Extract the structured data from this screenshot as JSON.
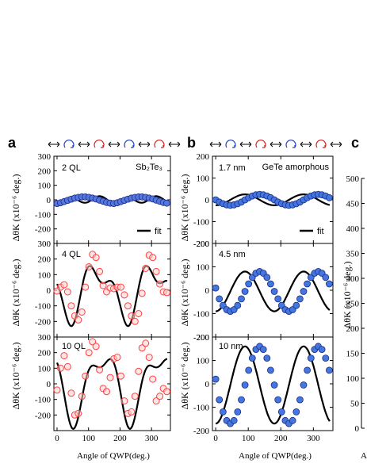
{
  "figure": {
    "panel_letters": [
      "a",
      "b",
      "c"
    ]
  },
  "chart_data": [
    {
      "type": "scatter",
      "panel": "a",
      "annotation": "2 QL",
      "material": "Sb₂Te₃",
      "legend": "fit",
      "ylabel": "ΔθK (x10⁻⁶ deg.)",
      "ylim": [
        -300,
        300
      ],
      "yticks": [
        -200,
        -100,
        0,
        100,
        200,
        300
      ],
      "xlim": [
        -10,
        360
      ],
      "xticks": [
        0,
        100,
        200,
        300
      ],
      "marker_color": "#5577dd",
      "fit": {
        "a1": 0,
        "b1": 0,
        "a2": -5,
        "b2": 0,
        "c4": -20,
        "s4": 0,
        "d": 0
      },
      "x": [
        0,
        11.25,
        22.5,
        33.75,
        45,
        56.25,
        67.5,
        78.75,
        90,
        101.25,
        112.5,
        123.75,
        135,
        146.25,
        157.5,
        168.75,
        180,
        191.25,
        202.5,
        213.75,
        225,
        236.25,
        247.5,
        258.75,
        270,
        281.25,
        292.5,
        303.75,
        315,
        326.25,
        337.5,
        348.75
      ],
      "values": [
        -25,
        -20,
        -12,
        -3,
        5,
        12,
        17,
        20,
        20,
        17,
        12,
        6,
        -2,
        -10,
        -18,
        -23,
        -25,
        -20,
        -12,
        -3,
        5,
        12,
        17,
        20,
        20,
        17,
        12,
        6,
        -2,
        -10,
        -18,
        -23
      ]
    },
    {
      "type": "scatter",
      "panel": "a",
      "annotation": "4 QL",
      "ylabel": "ΔθK (x10⁻⁶ deg.)",
      "ylim": [
        -300,
        300
      ],
      "yticks": [
        -200,
        -100,
        0,
        100,
        200,
        300
      ],
      "xlim": [
        -10,
        360
      ],
      "xticks": [
        0,
        100,
        200,
        300
      ],
      "marker_color": "#ff9090",
      "fit": {
        "a1": 0,
        "b1": 0,
        "a2": -145,
        "b2": -35,
        "c4": 80,
        "s4": 20,
        "d": -5
      },
      "x": [
        0,
        11.25,
        22.5,
        33.75,
        45,
        56.25,
        67.5,
        78.75,
        90,
        101.25,
        112.5,
        123.75,
        135,
        146.25,
        157.5,
        168.75,
        180,
        191.25,
        202.5,
        213.75,
        225,
        236.25,
        247.5,
        258.75,
        270,
        281.25,
        292.5,
        303.75,
        315,
        326.25,
        337.5,
        348.75
      ],
      "values": [
        -5,
        20,
        35,
        -10,
        -100,
        -165,
        -190,
        -140,
        20,
        150,
        230,
        210,
        120,
        30,
        -10,
        15,
        10,
        20,
        20,
        -30,
        -100,
        -165,
        -200,
        -150,
        -20,
        140,
        225,
        210,
        120,
        40,
        -10,
        -15
      ]
    },
    {
      "type": "scatter",
      "panel": "a",
      "annotation": "10 QL",
      "ylabel": "ΔθK (x10⁻⁶ deg.)",
      "xlabel": "Angle of QWP(deg.)",
      "ylim": [
        -300,
        300
      ],
      "yticks": [
        -200,
        -100,
        0,
        100,
        200,
        300
      ],
      "xlim": [
        -10,
        360
      ],
      "xticks": [
        0,
        100,
        200,
        300
      ],
      "marker_color": "#ff9090",
      "fit": {
        "a1": 0,
        "b1": 0,
        "a2": -190,
        "b2": 60,
        "c4": 80,
        "s4": 30,
        "d": -5
      },
      "x": [
        0,
        11.25,
        22.5,
        33.75,
        45,
        56.25,
        67.5,
        78.75,
        90,
        101.25,
        112.5,
        123.75,
        135,
        146.25,
        157.5,
        168.75,
        180,
        191.25,
        202.5,
        213.75,
        225,
        236.25,
        247.5,
        258.75,
        270,
        281.25,
        292.5,
        303.75,
        315,
        326.25,
        337.5,
        348.75
      ],
      "values": [
        -40,
        100,
        180,
        110,
        -60,
        -200,
        -190,
        -80,
        50,
        200,
        270,
        240,
        90,
        -30,
        -50,
        40,
        160,
        170,
        50,
        -110,
        -190,
        -180,
        -80,
        80,
        230,
        260,
        170,
        30,
        -110,
        -80,
        -30,
        -50
      ]
    },
    {
      "type": "scatter",
      "panel": "b",
      "annotation": "1.7 nm",
      "material": "GeTe amorphous",
      "legend": "fit",
      "ylabel": "ΔθK (x10⁻⁶ deg.)",
      "ylim": [
        -200,
        200
      ],
      "yticks": [
        -200,
        -100,
        0,
        100,
        200
      ],
      "xlim": [
        -10,
        360
      ],
      "xticks": [
        0,
        100,
        200,
        300
      ],
      "marker_color": "#4477dd",
      "fit": {
        "a1": 0,
        "b1": 0,
        "a2": 0,
        "b2": -25,
        "c4": 0,
        "s4": 0,
        "d": 0
      },
      "x": [
        0,
        11.25,
        22.5,
        33.75,
        45,
        56.25,
        67.5,
        78.75,
        90,
        101.25,
        112.5,
        123.75,
        135,
        146.25,
        157.5,
        168.75,
        180,
        191.25,
        202.5,
        213.75,
        225,
        236.25,
        247.5,
        258.75,
        270,
        281.25,
        292.5,
        303.75,
        315,
        326.25,
        337.5,
        348.75
      ],
      "values": [
        0,
        -10,
        -18,
        -23,
        -25,
        -23,
        -18,
        -10,
        0,
        10,
        18,
        23,
        25,
        23,
        18,
        10,
        0,
        -10,
        -18,
        -23,
        -25,
        -23,
        -18,
        -10,
        0,
        10,
        18,
        23,
        25,
        23,
        18,
        10
      ]
    },
    {
      "type": "scatter",
      "panel": "b",
      "annotation": "4.5 nm",
      "ylabel": "ΔθK (x10⁻⁶ deg.)",
      "ylim": [
        -200,
        200
      ],
      "yticks": [
        -200,
        -100,
        0,
        100,
        200
      ],
      "xlim": [
        -10,
        360
      ],
      "xticks": [
        0,
        100,
        200,
        300
      ],
      "marker_color": "#4477dd",
      "fit": {
        "a1": 0,
        "b1": 0,
        "a2": 0,
        "b2": -85,
        "c4": 0,
        "s4": 0,
        "d": -5
      },
      "x": [
        0,
        11.25,
        22.5,
        33.75,
        45,
        56.25,
        67.5,
        78.75,
        90,
        101.25,
        112.5,
        123.75,
        135,
        146.25,
        157.5,
        168.75,
        180,
        191.25,
        202.5,
        213.75,
        225,
        236.25,
        247.5,
        258.75,
        270,
        281.25,
        292.5,
        303.75,
        315,
        326.25,
        337.5,
        348.75
      ],
      "values": [
        10,
        -37,
        -65,
        -83,
        -90,
        -83,
        -65,
        -37,
        -5,
        27,
        55,
        73,
        80,
        73,
        55,
        27,
        -5,
        -37,
        -65,
        -83,
        -90,
        -83,
        -65,
        -37,
        -5,
        27,
        55,
        73,
        80,
        73,
        55,
        27
      ]
    },
    {
      "type": "scatter",
      "panel": "b",
      "annotation": "10 nm",
      "ylabel": "ΔθK (x10⁻⁶ deg.)",
      "xlabel": "Angle of QWP(deg.)",
      "ylim": [
        -200,
        200
      ],
      "yticks": [
        -200,
        -100,
        0,
        100,
        200
      ],
      "xlim": [
        -10,
        360
      ],
      "xticks": [
        0,
        100,
        200,
        300
      ],
      "marker_color": "#4477dd",
      "fit": {
        "a1": 0,
        "b1": 0,
        "a2": 0,
        "b2": -165,
        "c4": 0,
        "s4": 0,
        "d": -5
      },
      "x": [
        0,
        11.25,
        22.5,
        33.75,
        45,
        56.25,
        67.5,
        78.75,
        90,
        101.25,
        112.5,
        123.75,
        135,
        146.25,
        157.5,
        168.75,
        180,
        191.25,
        202.5,
        213.75,
        225,
        236.25,
        247.5,
        258.75,
        270,
        281.25,
        292.5,
        303.75,
        315,
        326.25,
        337.5,
        348.75
      ],
      "values": [
        20,
        -68,
        -120,
        -157,
        -170,
        -157,
        -120,
        -68,
        -5,
        58,
        110,
        147,
        160,
        147,
        110,
        58,
        -5,
        -68,
        -120,
        -157,
        -170,
        -157,
        -120,
        -68,
        -5,
        58,
        110,
        147,
        160,
        147,
        110,
        58
      ]
    },
    {
      "type": "scatter",
      "panel": "c",
      "ylabel": "ΔθK (x10⁻⁶ deg.)",
      "xlabel": "A",
      "ylim": [
        0,
        500
      ],
      "yticks": [
        0,
        50,
        100,
        150,
        200,
        250,
        300,
        350,
        400,
        450,
        500
      ]
    }
  ]
}
